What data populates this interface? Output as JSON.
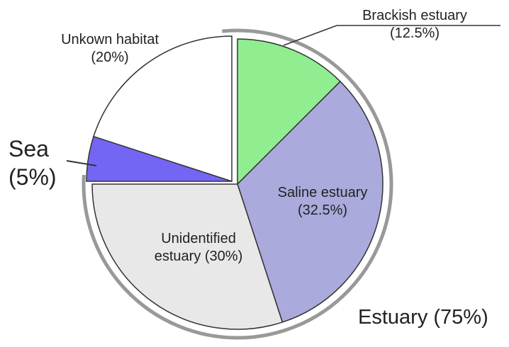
{
  "chart_data": {
    "type": "pie",
    "categories": [
      "Brackish estuary",
      "Saline estuary",
      "Unidentified estuary",
      "Sea",
      "Unkown habitat"
    ],
    "values": [
      12.5,
      32.5,
      30,
      5,
      20
    ],
    "value_labels": [
      "(12.5%)",
      "(32.5%)",
      "(30%)",
      "(5%)",
      "(20%)"
    ],
    "colors": [
      "#90ee90",
      "#aaaadc",
      "#e8e8e8",
      "#7466f4",
      "#ffffff"
    ],
    "annotations": [
      {
        "text": "Estuary (75%)"
      }
    ]
  }
}
